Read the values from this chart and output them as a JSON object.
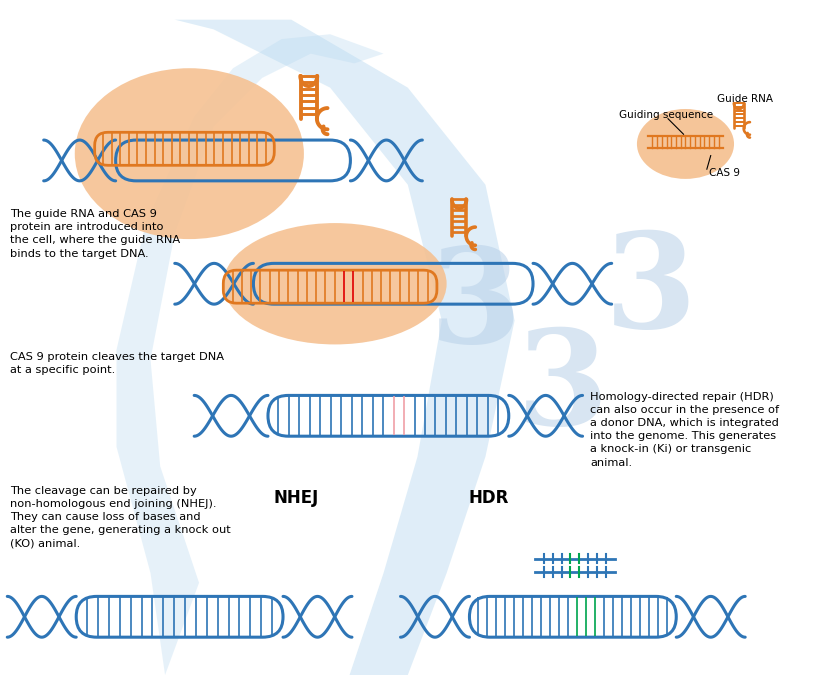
{
  "bg_color": "#ffffff",
  "blue_flow": "#b8d9f0",
  "dna_blue": "#2e75b6",
  "dna_orange": "#e07820",
  "cas9_fill": "#f5c090",
  "green_insert": "#00a550",
  "pink_gap": "#f0a0a8",
  "red_target": "#e00000",
  "watermark_color": "#b8d0e8",
  "text_color": "#000000",
  "label1": "The guide RNA and CAS 9\nprotein are introduced into\nthe cell, where the guide RNA\nbinds to the target DNA.",
  "label2": "CAS 9 protein cleaves the target DNA\nat a specific point.",
  "label3": "The cleavage can be repaired by\nnon-homologous end joining (NHEJ).\nThey can cause loss of bases and\nalter the gene, generating a knock out\n(KO) animal.",
  "label4": "Homology-directed repair (HDR)\ncan also occur in the presence of\na donor DNA, which is integrated\ninto the genome. This generates\na knock-in (Ki) or transgenic\nanimal.",
  "label_nhej": "NHEJ",
  "label_hdr": "HDR",
  "label_guide_rna": "Guide RNA",
  "label_guiding_seq": "Guiding sequence",
  "label_cas9": "CAS 9"
}
